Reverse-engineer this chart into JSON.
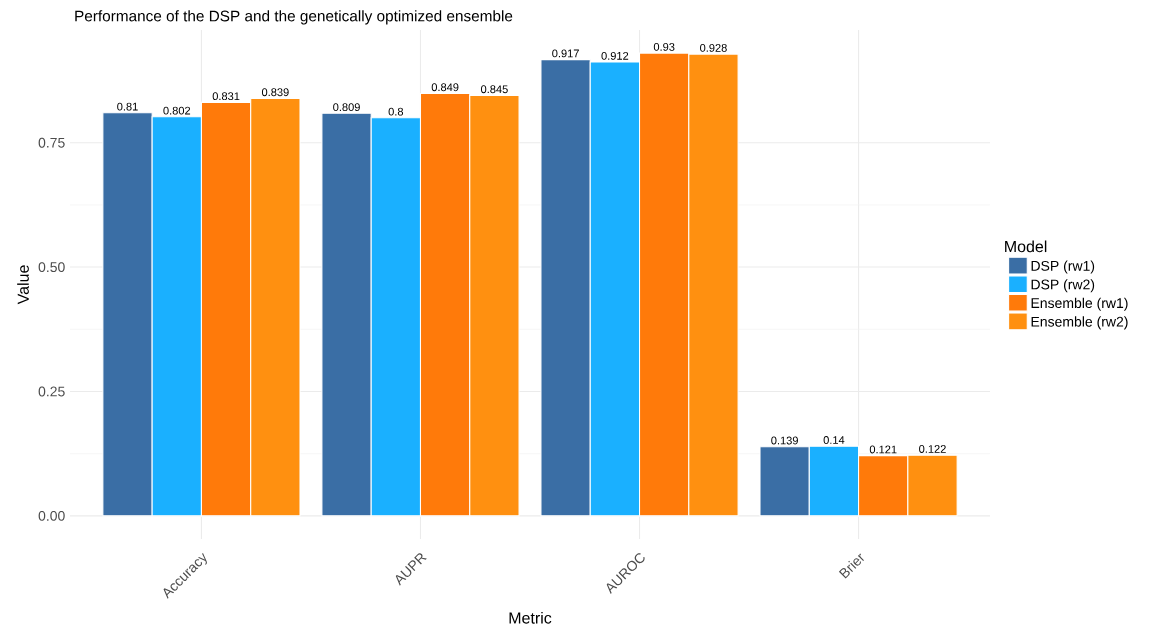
{
  "chart_data": {
    "type": "bar",
    "title": "Performance of the DSP and the genetically optimized ensemble",
    "xlabel": "Metric",
    "ylabel": "Value",
    "legend_title": "Model",
    "categories": [
      "Accuracy",
      "AUPR",
      "AUROC",
      "Brier"
    ],
    "series": [
      {
        "name": "DSP (rw1)",
        "color": "#3a6ea5",
        "values": [
          0.81,
          0.809,
          0.917,
          0.139
        ]
      },
      {
        "name": "DSP (rw2)",
        "color": "#1ab0ff",
        "values": [
          0.802,
          0.8,
          0.912,
          0.14
        ]
      },
      {
        "name": "Ensemble (rw1)",
        "color": "#ff7a0a",
        "values": [
          0.831,
          0.849,
          0.93,
          0.121
        ]
      },
      {
        "name": "Ensemble (rw2)",
        "color": "#ff9010",
        "values": [
          0.839,
          0.845,
          0.928,
          0.122
        ]
      }
    ],
    "ylim": [
      -0.0465,
      0.9765
    ],
    "yticks": [
      {
        "value": 0,
        "label": "0.00"
      },
      0.25,
      {
        "value": 0.5,
        "label": "0.50"
      },
      0.75
    ],
    "grid": true,
    "legend": "right",
    "data_labels": true
  }
}
